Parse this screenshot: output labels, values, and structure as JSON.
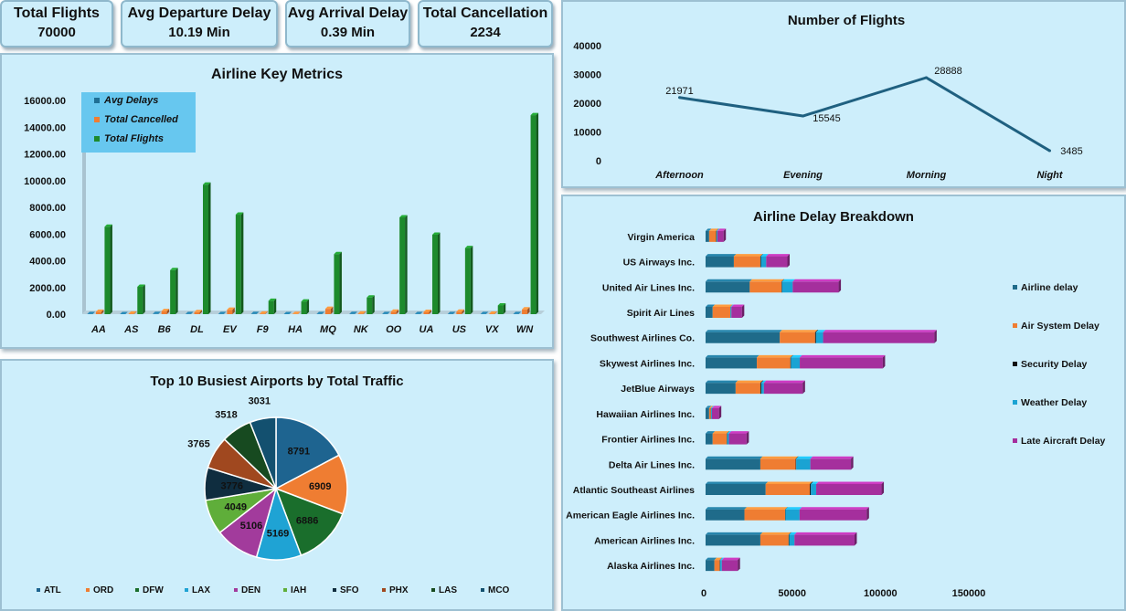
{
  "kpis": [
    {
      "title": "Total Flights",
      "value": "70000"
    },
    {
      "title": "Avg Departure Delay",
      "value": "10.19 Min"
    },
    {
      "title": "Avg Arrival Delay",
      "value": "0.39 Min"
    },
    {
      "title": "Total Cancellation",
      "value": "2234"
    }
  ],
  "chart_data": [
    {
      "id": "key-metrics",
      "type": "bar",
      "title": "Airline Key Metrics",
      "categories": [
        "AA",
        "AS",
        "B6",
        "DL",
        "EV",
        "F9",
        "HA",
        "MQ",
        "NK",
        "OO",
        "UA",
        "US",
        "VX",
        "WN"
      ],
      "series": [
        {
          "name": "Avg Delays",
          "color": "#1f6f95",
          "values": [
            10,
            4,
            13,
            7,
            11,
            15,
            2,
            10,
            17,
            8,
            11,
            10,
            8,
            9
          ]
        },
        {
          "name": "Total Cancelled",
          "color": "#ef7d32",
          "values": [
            180,
            40,
            230,
            150,
            330,
            40,
            20,
            400,
            50,
            190,
            170,
            190,
            30,
            360
          ]
        },
        {
          "name": "Total Flights",
          "color": "#1d8a2c",
          "values": [
            6550,
            2050,
            3300,
            9700,
            7450,
            1000,
            950,
            4500,
            1250,
            7250,
            5950,
            4950,
            650,
            14900
          ]
        }
      ],
      "y_ticks": [
        "0.00",
        "2000.00",
        "4000.00",
        "6000.00",
        "8000.00",
        "10000.00",
        "12000.00",
        "14000.00",
        "16000.00"
      ],
      "ylim": [
        0,
        16000
      ],
      "legend": "top-left"
    },
    {
      "id": "flights-by-time",
      "type": "line",
      "title": "Number of Flights",
      "categories": [
        "Afternoon",
        "Evening",
        "Morning",
        "Night"
      ],
      "values": [
        21971,
        15545,
        28888,
        3485
      ],
      "color": "#1f6080",
      "y_ticks": [
        "0",
        "10000",
        "20000",
        "30000",
        "40000"
      ],
      "ylim": [
        0,
        40000
      ]
    },
    {
      "id": "busiest-airports",
      "type": "pie",
      "title": "Top 10 Busiest Airports by Total Traffic",
      "labels": [
        "ATL",
        "ORD",
        "DFW",
        "LAX",
        "DEN",
        "IAH",
        "SFO",
        "PHX",
        "LAS",
        "MCO"
      ],
      "values": [
        8791,
        6909,
        6886,
        5169,
        5106,
        4049,
        3776,
        3765,
        3518,
        3031
      ],
      "colors": [
        "#1e6490",
        "#ef7d32",
        "#1a6e2c",
        "#1fa3d4",
        "#a23b9c",
        "#5fae3a",
        "#0f2d3f",
        "#a0481f",
        "#174a20",
        "#13506f"
      ],
      "legend": "bottom"
    },
    {
      "id": "delay-breakdown",
      "type": "bar",
      "orientation": "horizontal",
      "stacked": true,
      "title": "Airline Delay Breakdown",
      "categories": [
        "Virgin America",
        "US Airways Inc.",
        "United Air Lines Inc.",
        "Spirit Air Lines",
        "Southwest Airlines Co.",
        "Skywest Airlines Inc.",
        "JetBlue Airways",
        "Hawaiian Airlines Inc.",
        "Frontier Airlines Inc.",
        "Delta Air Lines Inc.",
        "Atlantic Southeast Airlines",
        "American Eagle Airlines Inc.",
        "American Airlines Inc.",
        "Alaska Airlines Inc."
      ],
      "series": [
        {
          "name": "Airline delay",
          "color": "#1f6b8a",
          "values": [
            2000,
            16000,
            25000,
            4000,
            42000,
            29000,
            17000,
            2000,
            4000,
            31000,
            34000,
            22000,
            31000,
            5000
          ]
        },
        {
          "name": "Air System Delay",
          "color": "#ef7d32",
          "values": [
            4000,
            15000,
            18000,
            10000,
            20000,
            19000,
            14000,
            1000,
            8000,
            20000,
            25000,
            23000,
            16000,
            3000
          ]
        },
        {
          "name": "Security Delay",
          "color": "#111111",
          "values": [
            200,
            300,
            300,
            100,
            500,
            300,
            500,
            100,
            200,
            300,
            600,
            200,
            300,
            200
          ]
        },
        {
          "name": "Weather Delay",
          "color": "#1aa3d3",
          "values": [
            500,
            3000,
            6000,
            500,
            4000,
            5000,
            1500,
            500,
            1000,
            8000,
            3000,
            8000,
            3000,
            1000
          ]
        },
        {
          "name": "Late Aircraft Delay",
          "color": "#a52f9d",
          "values": [
            3500,
            12000,
            26000,
            6000,
            63000,
            47000,
            22000,
            4000,
            10000,
            23000,
            37000,
            38000,
            34000,
            9000
          ]
        }
      ],
      "x_ticks": [
        "0",
        "50000",
        "100000",
        "150000"
      ],
      "xlim": [
        0,
        150000
      ],
      "legend": "right"
    }
  ]
}
